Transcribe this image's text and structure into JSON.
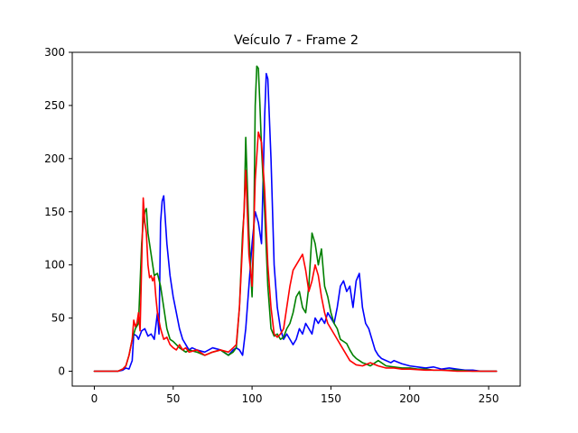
{
  "chart_data": {
    "type": "line",
    "title": "Veículo 7 - Frame 2",
    "xlabel": "",
    "ylabel": "",
    "xlim": [
      -14,
      270
    ],
    "ylim": [
      -14,
      300
    ],
    "xticks": [
      0,
      50,
      100,
      150,
      200,
      250
    ],
    "yticks": [
      0,
      50,
      100,
      150,
      200,
      250,
      300
    ],
    "grid": false,
    "legend": "none",
    "series": [
      {
        "color": "#0000ff",
        "points": [
          [
            0,
            0
          ],
          [
            10,
            0
          ],
          [
            15,
            0
          ],
          [
            18,
            1
          ],
          [
            20,
            3
          ],
          [
            22,
            2
          ],
          [
            24,
            10
          ],
          [
            25,
            35
          ],
          [
            27,
            33
          ],
          [
            28,
            30
          ],
          [
            30,
            38
          ],
          [
            32,
            40
          ],
          [
            34,
            33
          ],
          [
            36,
            35
          ],
          [
            38,
            30
          ],
          [
            40,
            55
          ],
          [
            41,
            35
          ],
          [
            42,
            140
          ],
          [
            43,
            160
          ],
          [
            44,
            165
          ],
          [
            46,
            120
          ],
          [
            48,
            90
          ],
          [
            50,
            70
          ],
          [
            52,
            55
          ],
          [
            54,
            40
          ],
          [
            56,
            30
          ],
          [
            58,
            25
          ],
          [
            60,
            20
          ],
          [
            62,
            22
          ],
          [
            65,
            20
          ],
          [
            70,
            18
          ],
          [
            75,
            22
          ],
          [
            80,
            20
          ],
          [
            85,
            15
          ],
          [
            88,
            20
          ],
          [
            90,
            22
          ],
          [
            92,
            20
          ],
          [
            94,
            15
          ],
          [
            96,
            40
          ],
          [
            98,
            80
          ],
          [
            100,
            120
          ],
          [
            102,
            150
          ],
          [
            104,
            140
          ],
          [
            106,
            120
          ],
          [
            108,
            240
          ],
          [
            109,
            280
          ],
          [
            110,
            275
          ],
          [
            112,
            200
          ],
          [
            114,
            100
          ],
          [
            116,
            60
          ],
          [
            118,
            40
          ],
          [
            120,
            30
          ],
          [
            122,
            35
          ],
          [
            124,
            30
          ],
          [
            126,
            25
          ],
          [
            128,
            30
          ],
          [
            130,
            40
          ],
          [
            132,
            35
          ],
          [
            134,
            45
          ],
          [
            136,
            40
          ],
          [
            138,
            35
          ],
          [
            140,
            50
          ],
          [
            142,
            45
          ],
          [
            144,
            50
          ],
          [
            146,
            45
          ],
          [
            148,
            55
          ],
          [
            150,
            50
          ],
          [
            152,
            45
          ],
          [
            154,
            60
          ],
          [
            156,
            80
          ],
          [
            158,
            85
          ],
          [
            160,
            75
          ],
          [
            162,
            80
          ],
          [
            164,
            60
          ],
          [
            166,
            85
          ],
          [
            168,
            92
          ],
          [
            170,
            60
          ],
          [
            172,
            45
          ],
          [
            174,
            40
          ],
          [
            176,
            30
          ],
          [
            178,
            20
          ],
          [
            180,
            15
          ],
          [
            182,
            12
          ],
          [
            185,
            10
          ],
          [
            188,
            8
          ],
          [
            190,
            10
          ],
          [
            195,
            7
          ],
          [
            200,
            5
          ],
          [
            205,
            4
          ],
          [
            210,
            3
          ],
          [
            215,
            4
          ],
          [
            220,
            2
          ],
          [
            225,
            3
          ],
          [
            230,
            2
          ],
          [
            235,
            1
          ],
          [
            240,
            1
          ],
          [
            245,
            0
          ],
          [
            250,
            0
          ],
          [
            255,
            0
          ]
        ]
      },
      {
        "color": "#008000",
        "points": [
          [
            0,
            0
          ],
          [
            10,
            0
          ],
          [
            15,
            0
          ],
          [
            18,
            2
          ],
          [
            20,
            5
          ],
          [
            22,
            15
          ],
          [
            24,
            30
          ],
          [
            26,
            40
          ],
          [
            28,
            45
          ],
          [
            30,
            120
          ],
          [
            31,
            140
          ],
          [
            32,
            150
          ],
          [
            33,
            153
          ],
          [
            34,
            130
          ],
          [
            36,
            110
          ],
          [
            38,
            90
          ],
          [
            40,
            92
          ],
          [
            42,
            80
          ],
          [
            44,
            60
          ],
          [
            46,
            40
          ],
          [
            48,
            30
          ],
          [
            50,
            28
          ],
          [
            52,
            25
          ],
          [
            54,
            22
          ],
          [
            56,
            20
          ],
          [
            58,
            18
          ],
          [
            60,
            20
          ],
          [
            65,
            18
          ],
          [
            70,
            15
          ],
          [
            75,
            18
          ],
          [
            80,
            20
          ],
          [
            85,
            15
          ],
          [
            88,
            18
          ],
          [
            90,
            22
          ],
          [
            92,
            60
          ],
          [
            94,
            130
          ],
          [
            95,
            150
          ],
          [
            96,
            220
          ],
          [
            97,
            175
          ],
          [
            98,
            130
          ],
          [
            99,
            100
          ],
          [
            100,
            70
          ],
          [
            101,
            120
          ],
          [
            102,
            250
          ],
          [
            103,
            287
          ],
          [
            104,
            285
          ],
          [
            105,
            250
          ],
          [
            106,
            210
          ],
          [
            108,
            150
          ],
          [
            110,
            80
          ],
          [
            112,
            40
          ],
          [
            114,
            33
          ],
          [
            116,
            35
          ],
          [
            118,
            30
          ],
          [
            120,
            32
          ],
          [
            122,
            40
          ],
          [
            124,
            45
          ],
          [
            126,
            55
          ],
          [
            128,
            70
          ],
          [
            130,
            75
          ],
          [
            132,
            60
          ],
          [
            134,
            55
          ],
          [
            136,
            80
          ],
          [
            138,
            130
          ],
          [
            140,
            120
          ],
          [
            142,
            100
          ],
          [
            144,
            115
          ],
          [
            146,
            80
          ],
          [
            148,
            70
          ],
          [
            150,
            55
          ],
          [
            152,
            45
          ],
          [
            154,
            40
          ],
          [
            156,
            30
          ],
          [
            158,
            28
          ],
          [
            160,
            26
          ],
          [
            162,
            20
          ],
          [
            164,
            15
          ],
          [
            166,
            12
          ],
          [
            168,
            10
          ],
          [
            170,
            8
          ],
          [
            172,
            7
          ],
          [
            175,
            5
          ],
          [
            180,
            10
          ],
          [
            185,
            5
          ],
          [
            190,
            4
          ],
          [
            195,
            3
          ],
          [
            200,
            3
          ],
          [
            205,
            2
          ],
          [
            210,
            2
          ],
          [
            215,
            1
          ],
          [
            220,
            1
          ],
          [
            230,
            1
          ],
          [
            240,
            0
          ],
          [
            250,
            0
          ],
          [
            255,
            0
          ]
        ]
      },
      {
        "color": "#ff0000",
        "points": [
          [
            0,
            0
          ],
          [
            10,
            0
          ],
          [
            15,
            0
          ],
          [
            18,
            2
          ],
          [
            20,
            5
          ],
          [
            22,
            15
          ],
          [
            24,
            30
          ],
          [
            25,
            48
          ],
          [
            26,
            42
          ],
          [
            27,
            45
          ],
          [
            28,
            55
          ],
          [
            29,
            38
          ],
          [
            30,
            100
          ],
          [
            31,
            163
          ],
          [
            32,
            140
          ],
          [
            33,
            130
          ],
          [
            34,
            100
          ],
          [
            35,
            88
          ],
          [
            36,
            90
          ],
          [
            37,
            85
          ],
          [
            38,
            89
          ],
          [
            39,
            70
          ],
          [
            40,
            55
          ],
          [
            42,
            40
          ],
          [
            44,
            30
          ],
          [
            46,
            32
          ],
          [
            48,
            25
          ],
          [
            50,
            22
          ],
          [
            52,
            20
          ],
          [
            54,
            25
          ],
          [
            56,
            20
          ],
          [
            58,
            22
          ],
          [
            60,
            18
          ],
          [
            65,
            20
          ],
          [
            70,
            15
          ],
          [
            75,
            18
          ],
          [
            80,
            20
          ],
          [
            85,
            18
          ],
          [
            88,
            22
          ],
          [
            90,
            25
          ],
          [
            92,
            60
          ],
          [
            94,
            120
          ],
          [
            96,
            189
          ],
          [
            97,
            150
          ],
          [
            98,
            110
          ],
          [
            100,
            80
          ],
          [
            102,
            180
          ],
          [
            104,
            225
          ],
          [
            105,
            220
          ],
          [
            106,
            215
          ],
          [
            108,
            170
          ],
          [
            110,
            100
          ],
          [
            112,
            60
          ],
          [
            114,
            35
          ],
          [
            116,
            32
          ],
          [
            118,
            35
          ],
          [
            120,
            40
          ],
          [
            122,
            60
          ],
          [
            124,
            80
          ],
          [
            126,
            95
          ],
          [
            128,
            100
          ],
          [
            130,
            105
          ],
          [
            132,
            110
          ],
          [
            134,
            95
          ],
          [
            136,
            75
          ],
          [
            138,
            85
          ],
          [
            140,
            100
          ],
          [
            142,
            90
          ],
          [
            144,
            70
          ],
          [
            146,
            55
          ],
          [
            148,
            45
          ],
          [
            150,
            40
          ],
          [
            152,
            35
          ],
          [
            154,
            30
          ],
          [
            156,
            25
          ],
          [
            158,
            20
          ],
          [
            160,
            15
          ],
          [
            162,
            10
          ],
          [
            164,
            8
          ],
          [
            166,
            6
          ],
          [
            170,
            5
          ],
          [
            175,
            8
          ],
          [
            180,
            5
          ],
          [
            185,
            3
          ],
          [
            190,
            3
          ],
          [
            195,
            2
          ],
          [
            200,
            2
          ],
          [
            210,
            1
          ],
          [
            220,
            1
          ],
          [
            230,
            0
          ],
          [
            240,
            0
          ],
          [
            250,
            0
          ],
          [
            255,
            0
          ]
        ]
      }
    ]
  }
}
